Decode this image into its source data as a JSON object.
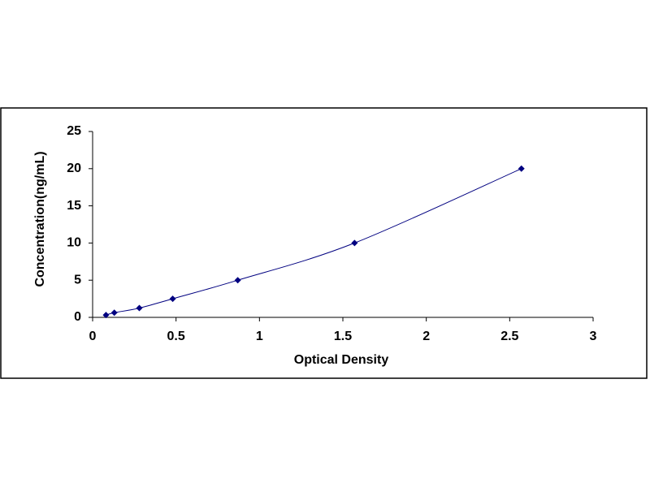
{
  "chart_data": {
    "type": "scatter",
    "x_label": "Optical Density",
    "y_label": "Concentration(ng/mL)",
    "x": [
      0.08,
      0.13,
      0.28,
      0.48,
      0.87,
      1.57,
      2.57
    ],
    "values": [
      0.31,
      0.63,
      1.25,
      2.5,
      5,
      10,
      20
    ],
    "color": "#000080",
    "smooth": true,
    "marker": "diamond",
    "xlim": [
      0,
      3
    ],
    "xticks": [
      0,
      0.5,
      1,
      1.5,
      2,
      2.5,
      3
    ],
    "ylim": [
      0,
      25
    ],
    "yticks": [
      0,
      5,
      10,
      15,
      20,
      25
    ],
    "grid": false
  }
}
